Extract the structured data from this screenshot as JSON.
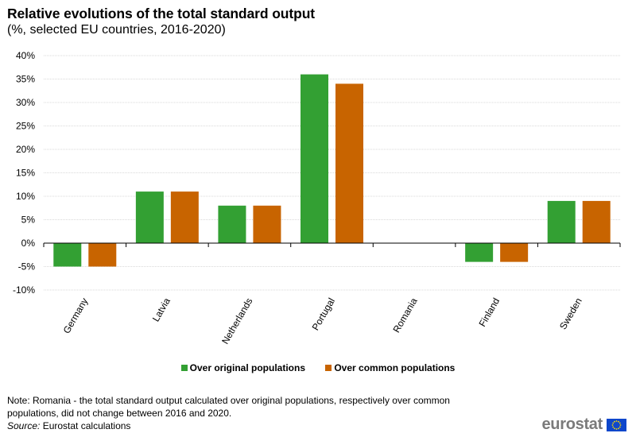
{
  "title": "Relative evolutions of the total standard output",
  "subtitle": "(%, selected EU countries, 2016-2020)",
  "note": "Note: Romania - the total standard output calculated over original populations, respectively over common populations, did not change between 2016 and 2020.",
  "source_label": "Source:",
  "source_text": "Eurostat calculations",
  "logo_text": "eurostat",
  "chart_data": {
    "type": "bar",
    "categories": [
      "Germany",
      "Latvia",
      "Netherlands",
      "Portugal",
      "Romania",
      "Finland",
      "Sweden"
    ],
    "series": [
      {
        "name": "Over original populations",
        "color": "#33a033",
        "values": [
          -5,
          11,
          8,
          36,
          0,
          -4,
          9
        ]
      },
      {
        "name": "Over common populations",
        "color": "#c86400",
        "values": [
          -5,
          11,
          8,
          34,
          0,
          -4,
          9
        ]
      }
    ],
    "yticks": [
      "40%",
      "35%",
      "30%",
      "25%",
      "20%",
      "15%",
      "10%",
      "5%",
      "0%",
      "-5%",
      "-10%"
    ],
    "ylim": [
      -10,
      40
    ],
    "ytick_step": 5,
    "grid": true,
    "legend_position": "bottom"
  }
}
